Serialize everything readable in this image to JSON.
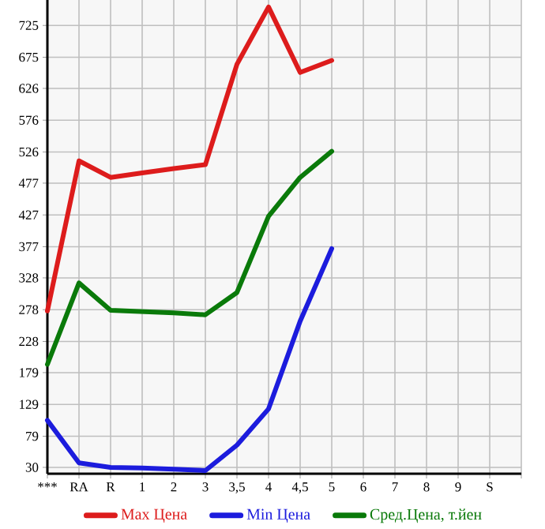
{
  "chart_data": {
    "type": "line",
    "categories": [
      "***",
      "RA",
      "R",
      "1",
      "2",
      "3",
      "3,5",
      "4",
      "4,5",
      "5",
      "6",
      "7",
      "8",
      "9",
      "S"
    ],
    "series": [
      {
        "name": "Max Цена",
        "color": "#dd1c1c",
        "values": [
          276,
          512,
          486,
          493,
          500,
          506,
          664,
          754,
          651,
          670,
          null,
          null,
          null,
          null,
          null
        ]
      },
      {
        "name": "Min Цена",
        "color": "#1c1cdd",
        "values": [
          104,
          37,
          30,
          29,
          27,
          25,
          65,
          122,
          260,
          374,
          null,
          null,
          null,
          null,
          null
        ]
      },
      {
        "name": "Сред.Цена, т.йен",
        "color": "#0a7a0a",
        "values": [
          192,
          320,
          277,
          275,
          273,
          270,
          305,
          425,
          486,
          527,
          null,
          null,
          null,
          null,
          null
        ]
      }
    ],
    "ylim": [
      20,
      765
    ],
    "yticks": [
      30,
      79,
      129,
      179,
      228,
      278,
      328,
      377,
      427,
      477,
      526,
      576,
      626,
      675,
      725
    ],
    "grid": true,
    "legend": "bottom",
    "marker": "none",
    "line_style": "solid"
  }
}
